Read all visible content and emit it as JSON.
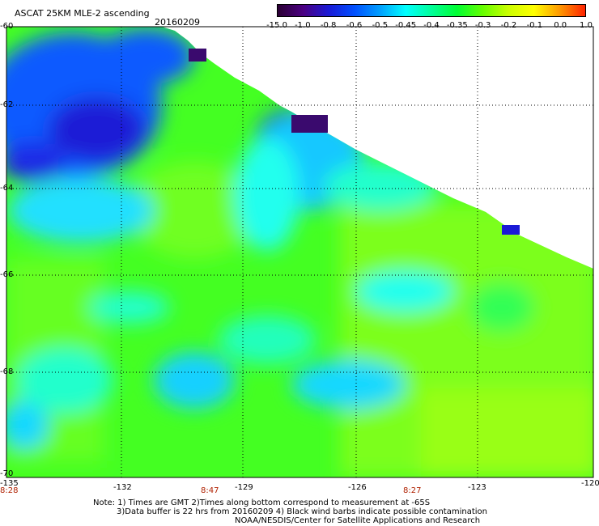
{
  "header": {
    "title": "ASCAT 25KM MLE-2 ascending",
    "date": "20160209"
  },
  "legend": {
    "labels": [
      "-15.0",
      "-1.0",
      "-0.8",
      "-0.6",
      "-0.5",
      "-0.45",
      "-0.4",
      "-0.35",
      "-0.3",
      "-0.2",
      "-0.1",
      "0.0",
      "1.0"
    ],
    "colors": [
      "#2a0033",
      "#4b0082",
      "#1a1ad6",
      "#0050ff",
      "#00a0ff",
      "#00ffff",
      "#00ff99",
      "#00ff33",
      "#66ff00",
      "#ccff00",
      "#ffff00",
      "#ff9900",
      "#ff2200"
    ]
  },
  "axes": {
    "lat_labels": [
      "-60",
      "-62",
      "-64",
      "-66",
      "-68",
      "-70"
    ],
    "lon_labels": [
      "-135",
      "-132",
      "-129",
      "-126",
      "-123",
      "-120"
    ],
    "time_labels": [
      "8:28",
      "8:47",
      "8:27"
    ]
  },
  "notes": {
    "line1": "Note: 1) Times are GMT 2)Times along bottom correspond to measurement at -65S",
    "line2": "3)Data buffer is 22 hrs from 20160209 4) Black wind barbs indicate possible contamination",
    "line3": "NOAA/NESDIS/Center for Satellite Applications and Research"
  }
}
